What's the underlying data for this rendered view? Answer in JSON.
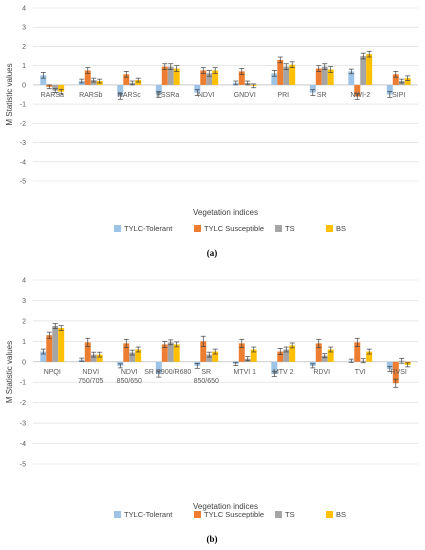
{
  "colors": {
    "TYLC-Tolerant": "#9dc3e6",
    "TYLC Susceptible": "#ed7d31",
    "TS": "#a5a5a5",
    "BS": "#ffc000"
  },
  "chart_data": [
    {
      "type": "bar",
      "panel_label": "(a)",
      "xlabel": "Vegetation indices",
      "ylabel": "M Statistic values",
      "ylim": [
        -5,
        4
      ],
      "yticks": [
        "4",
        "3",
        "2",
        "1",
        "0",
        "-1",
        "-2",
        "-3",
        "-4",
        "-5"
      ],
      "grid": true,
      "legend_position": "bottom",
      "categories": [
        [
          "RARSa"
        ],
        [
          "RARSb"
        ],
        [
          "RARSc"
        ],
        [
          "PSSRa"
        ],
        [
          "NDVI"
        ],
        [
          "GNDVI"
        ],
        [
          "PRI"
        ],
        [
          "SR"
        ],
        [
          "NWI-2"
        ],
        [
          "SIPI"
        ]
      ],
      "series": [
        {
          "name": "TYLC-Tolerant",
          "values": [
            0.5,
            0.2,
            -0.6,
            -0.5,
            -0.4,
            0.1,
            0.6,
            -0.4,
            0.7,
            -0.5
          ],
          "errors": [
            0.15,
            0.1,
            0.15,
            0.15,
            0.15,
            0.1,
            0.15,
            0.15,
            0.12,
            0.15
          ]
        },
        {
          "name": "TYLC Susceptible",
          "values": [
            -0.1,
            0.75,
            0.55,
            0.95,
            0.75,
            0.7,
            1.3,
            0.85,
            -0.6,
            0.55
          ],
          "errors": [
            0.1,
            0.15,
            0.15,
            0.15,
            0.15,
            0.15,
            0.15,
            0.15,
            0.15,
            0.15
          ]
        },
        {
          "name": "TS",
          "values": [
            -0.3,
            0.25,
            0.1,
            0.95,
            0.6,
            0.1,
            0.95,
            0.95,
            1.5,
            0.2
          ],
          "errors": [
            0.1,
            0.1,
            0.1,
            0.15,
            0.15,
            0.1,
            0.15,
            0.15,
            0.15,
            0.1
          ]
        },
        {
          "name": "BS",
          "values": [
            -0.35,
            0.2,
            0.25,
            0.85,
            0.75,
            -0.05,
            1.05,
            0.8,
            1.6,
            0.35
          ],
          "errors": [
            0.12,
            0.1,
            0.1,
            0.15,
            0.15,
            0.1,
            0.15,
            0.15,
            0.15,
            0.12
          ]
        }
      ]
    },
    {
      "type": "bar",
      "panel_label": "(b)",
      "xlabel": "Vegetation indices",
      "ylabel": "M Statistic values",
      "ylim": [
        -5,
        4
      ],
      "yticks": [
        "4",
        "3",
        "2",
        "1",
        "0",
        "-1",
        "-2",
        "-3",
        "-4",
        "-5"
      ],
      "grid": true,
      "legend_position": "bottom",
      "categories": [
        [
          "NPQI"
        ],
        [
          "NDVI",
          "750/705"
        ],
        [
          "NDVI",
          "850/650"
        ],
        [
          "SR R900/R680"
        ],
        [
          "SR",
          "850/650"
        ],
        [
          "MTVI 1"
        ],
        [
          "MTV 2"
        ],
        [
          "RDVI"
        ],
        [
          "TVI"
        ],
        [
          "RVSI"
        ]
      ],
      "series": [
        {
          "name": "TYLC-Tolerant",
          "values": [
            0.5,
            0.1,
            -0.2,
            -0.6,
            -0.2,
            -0.1,
            -0.6,
            -0.2,
            0.05,
            -0.35
          ],
          "errors": [
            0.12,
            0.08,
            0.1,
            0.15,
            0.12,
            0.08,
            0.12,
            0.1,
            0.08,
            0.12
          ]
        },
        {
          "name": "TYLC Susceptible",
          "values": [
            1.3,
            0.95,
            0.9,
            0.85,
            1.0,
            0.9,
            0.5,
            0.9,
            0.95,
            -1.05
          ],
          "errors": [
            0.15,
            0.2,
            0.2,
            0.15,
            0.25,
            0.2,
            0.15,
            0.2,
            0.2,
            0.2
          ]
        },
        {
          "name": "TS",
          "values": [
            1.75,
            0.35,
            0.45,
            0.95,
            0.35,
            0.15,
            0.6,
            0.3,
            0.05,
            0.05
          ],
          "errors": [
            0.12,
            0.12,
            0.12,
            0.12,
            0.12,
            0.1,
            0.12,
            0.1,
            0.1,
            0.12
          ]
        },
        {
          "name": "BS",
          "values": [
            1.65,
            0.35,
            0.6,
            0.85,
            0.5,
            0.6,
            0.8,
            0.6,
            0.5,
            -0.15
          ],
          "errors": [
            0.12,
            0.12,
            0.12,
            0.12,
            0.12,
            0.12,
            0.12,
            0.12,
            0.12,
            0.1
          ]
        }
      ]
    }
  ]
}
